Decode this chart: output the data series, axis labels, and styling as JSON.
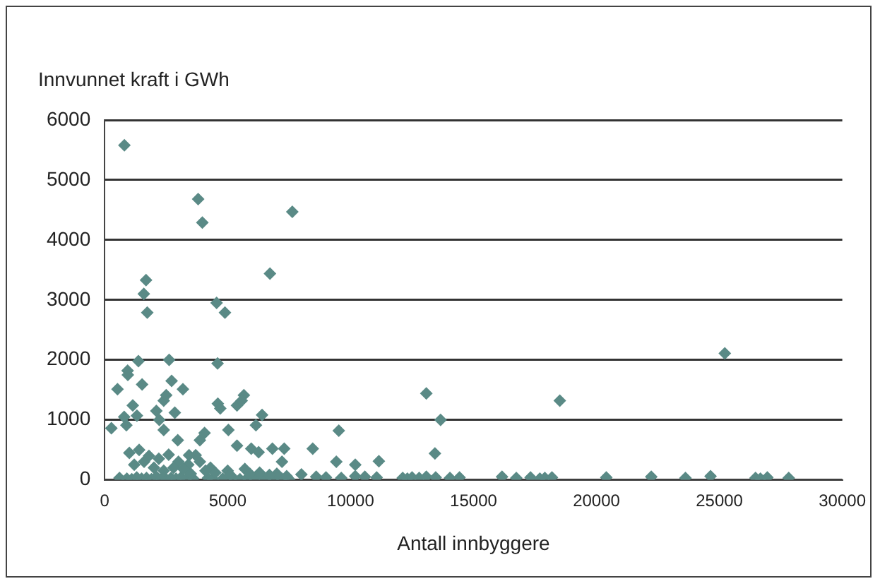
{
  "chart_data": {
    "type": "scatter",
    "xlabel": "Antall innbyggere",
    "ylabel": "Innvunnet kraft i GWh",
    "marker": "diamond",
    "grid": "y",
    "legend": false,
    "xlim": [
      0,
      30000
    ],
    "xticks": [
      0,
      5000,
      10000,
      15000,
      20000,
      25000,
      30000
    ],
    "ylim": [
      0,
      6000
    ],
    "yticks": [
      0,
      1000,
      2000,
      3000,
      4000,
      5000,
      6000
    ],
    "series": [
      {
        "color": "#5a8a86",
        "x": [
          800,
          3800,
          3970,
          7630,
          6720,
          1680,
          1590,
          1730,
          4550,
          4890,
          4590,
          1370,
          930,
          940,
          2620,
          2720,
          3180,
          1520,
          520,
          270,
          790,
          880,
          1140,
          1310,
          2100,
          2400,
          2500,
          2220,
          2400,
          2850,
          2970,
          4600,
          4700,
          5030,
          5380,
          5660,
          5570,
          6150,
          6400,
          5380,
          5960,
          6260,
          6820,
          7300,
          7210,
          8460,
          9520,
          9420,
          10190,
          3870,
          4060,
          3700,
          3870,
          3430,
          13080,
          13660,
          13430,
          18510,
          11150,
          25220,
          600,
          900,
          1100,
          1300,
          1500,
          1700,
          1900,
          2100,
          2300,
          2500,
          2700,
          2900,
          3100,
          3300,
          3600,
          4200,
          4400,
          4800,
          5200,
          5500,
          5800,
          6100,
          6500,
          6900,
          7200,
          7500,
          1000,
          1400,
          1800,
          2200,
          2600,
          3000,
          3400,
          4300,
          5000,
          5700,
          6300,
          7000,
          1200,
          1600,
          2000,
          2400,
          2800,
          3200,
          3500,
          4100,
          4500,
          5100,
          5900,
          6700,
          7400,
          8000,
          8600,
          9000,
          9620,
          10190,
          10580,
          11060,
          12120,
          12310,
          12500,
          12790,
          13080,
          13460,
          14040,
          14430,
          16160,
          16740,
          17320,
          17700,
          17900,
          18190,
          20400,
          22230,
          23620,
          24640,
          26470,
          26670,
          26950,
          27820
        ],
        "values": [
          5580,
          4680,
          4290,
          4470,
          3440,
          3330,
          3100,
          2790,
          2950,
          2790,
          1940,
          1980,
          1820,
          1750,
          2000,
          1650,
          1510,
          1590,
          1510,
          860,
          1050,
          910,
          1240,
          1070,
          1150,
          1320,
          1410,
          1000,
          830,
          1120,
          660,
          1270,
          1190,
          830,
          1240,
          1410,
          1320,
          910,
          1080,
          570,
          520,
          460,
          520,
          520,
          300,
          520,
          820,
          300,
          250,
          660,
          780,
          410,
          300,
          410,
          1440,
          1000,
          440,
          1320,
          310,
          2110,
          30,
          20,
          10,
          40,
          20,
          30,
          10,
          50,
          20,
          10,
          30,
          20,
          40,
          10,
          20,
          30,
          10,
          20,
          40,
          10,
          30,
          20,
          10,
          30,
          20,
          10,
          450,
          500,
          400,
          350,
          420,
          300,
          250,
          200,
          150,
          180,
          120,
          100,
          250,
          300,
          200,
          150,
          200,
          180,
          100,
          150,
          120,
          80,
          100,
          80,
          60,
          90,
          50,
          40,
          30,
          60,
          50,
          40,
          30,
          20,
          40,
          30,
          50,
          40,
          30,
          40,
          50,
          30,
          40,
          20,
          30,
          40,
          40,
          50,
          30,
          60,
          30,
          20,
          40,
          30
        ]
      }
    ]
  }
}
